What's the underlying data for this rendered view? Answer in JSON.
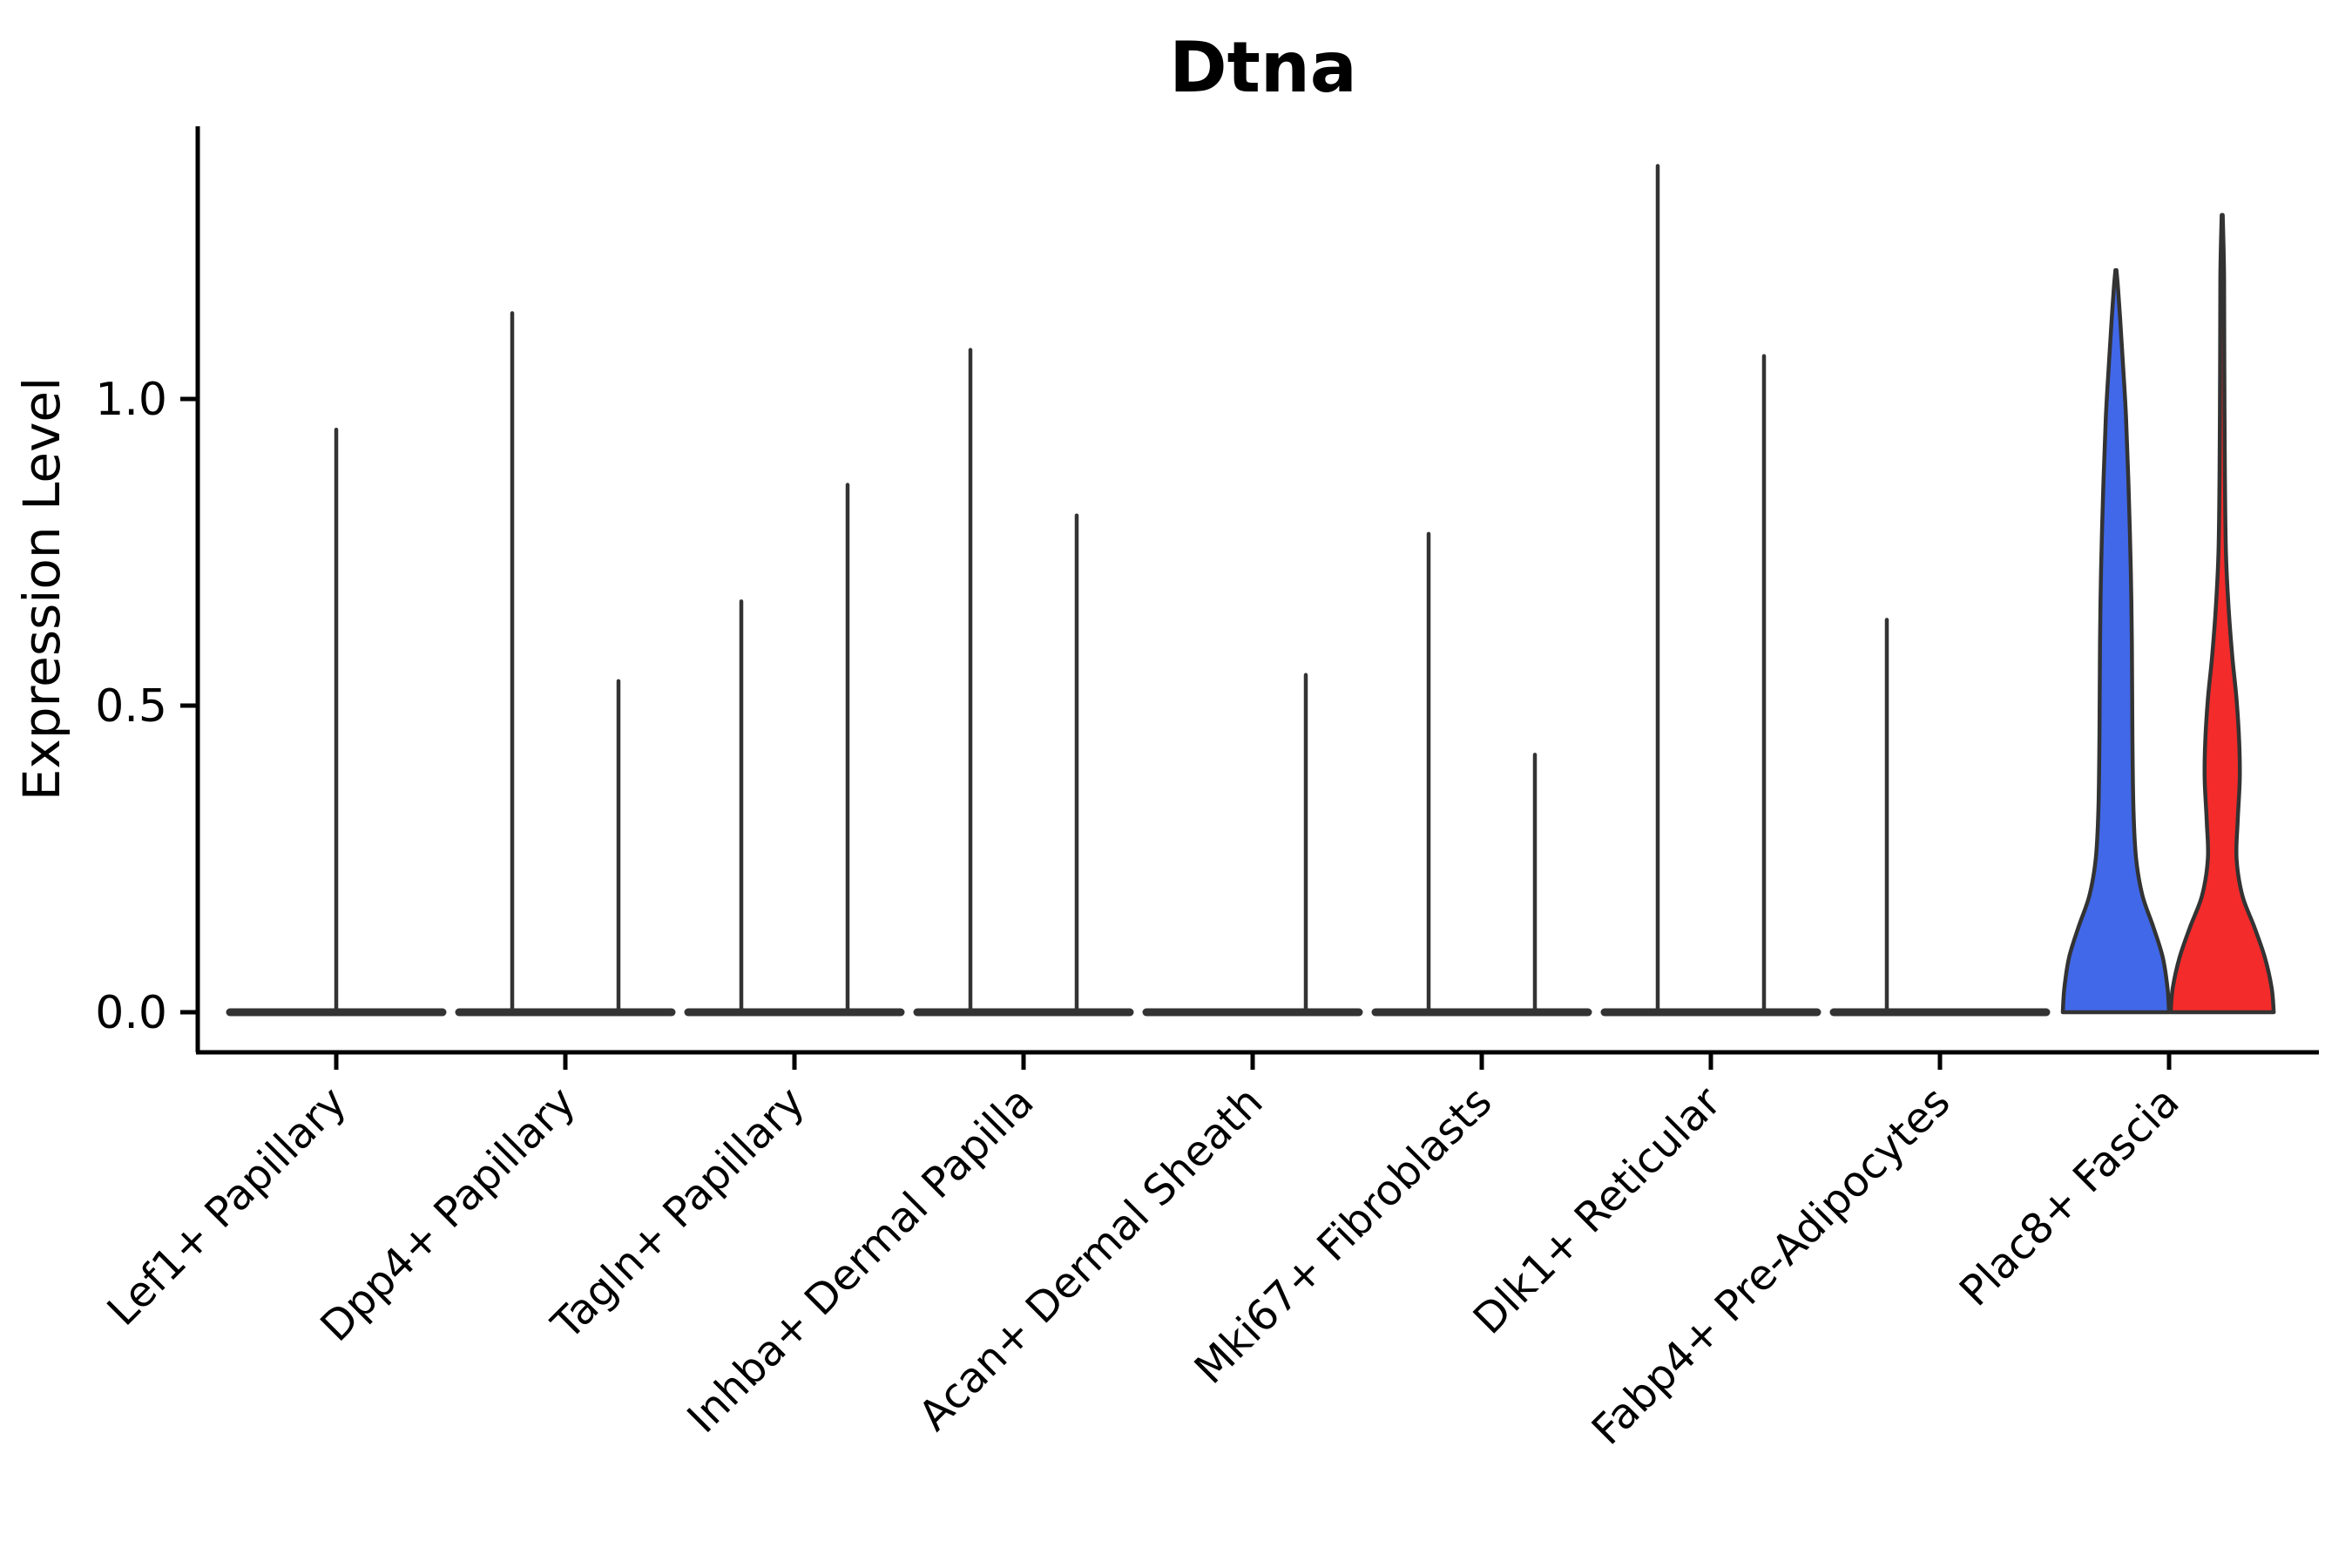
{
  "chart_data": {
    "type": "violin",
    "title": "Dtna",
    "ylabel": "Expression Level",
    "ytick_labels": [
      "0.0",
      "0.5",
      "1.0"
    ],
    "ytick_values": [
      0.0,
      0.5,
      1.0
    ],
    "ylim": [
      -0.065,
      1.445
    ],
    "grid": false,
    "legend": "none",
    "categories": [
      "Lef1+ Papillary",
      "Dpp4+ Papillary",
      "Tagln+ Papillary",
      "Inhba+ Dermal Papilla",
      "Acan+ Dermal Sheath",
      "Mki67+ Fibroblasts",
      "Dlk1+ Reticular",
      "Fabp4+ Pre-Adipocytes",
      "Plac8+ Fascia"
    ],
    "groups": [
      {
        "name": "left-group",
        "color": "#4168E8"
      },
      {
        "name": "right-group",
        "color": "#F32B2B"
      }
    ],
    "outline_color": "#333333",
    "axis_color": "#000000",
    "spikes": [
      {
        "category": 0,
        "position": "center",
        "top": 0.95
      },
      {
        "category": 1,
        "position": "left",
        "top": 1.14
      },
      {
        "category": 1,
        "position": "right",
        "top": 0.54
      },
      {
        "category": 2,
        "position": "left",
        "top": 0.67
      },
      {
        "category": 2,
        "position": "right",
        "top": 0.86
      },
      {
        "category": 3,
        "position": "left",
        "top": 1.08
      },
      {
        "category": 3,
        "position": "right",
        "top": 0.81
      },
      {
        "category": 4,
        "position": "right",
        "top": 0.55
      },
      {
        "category": 5,
        "position": "left",
        "top": 0.78
      },
      {
        "category": 5,
        "position": "right",
        "top": 0.42
      },
      {
        "category": 6,
        "position": "left",
        "top": 1.38
      },
      {
        "category": 6,
        "position": "right",
        "top": 1.07
      },
      {
        "category": 7,
        "position": "left",
        "top": 0.64
      }
    ],
    "flat_base_categories": [
      0,
      1,
      2,
      3,
      4,
      5,
      6,
      7
    ],
    "filled_violins": [
      {
        "category": 8,
        "position": "left",
        "name": "violin-blue",
        "color": "#4168E8",
        "max": 1.21,
        "profile": [
          [
            0.0,
            1.0
          ],
          [
            0.04,
            0.97
          ],
          [
            0.09,
            0.88
          ],
          [
            0.14,
            0.7
          ],
          [
            0.19,
            0.5
          ],
          [
            0.25,
            0.38
          ],
          [
            0.33,
            0.33
          ],
          [
            0.45,
            0.31
          ],
          [
            0.6,
            0.3
          ],
          [
            0.72,
            0.28
          ],
          [
            0.85,
            0.24
          ],
          [
            0.97,
            0.19
          ],
          [
            1.06,
            0.13
          ],
          [
            1.13,
            0.08
          ],
          [
            1.18,
            0.04
          ],
          [
            1.21,
            0.01
          ]
        ]
      },
      {
        "category": 8,
        "position": "right",
        "name": "violin-red",
        "color": "#F32B2B",
        "max": 1.3,
        "profile": [
          [
            0.0,
            0.97
          ],
          [
            0.04,
            0.93
          ],
          [
            0.09,
            0.8
          ],
          [
            0.14,
            0.6
          ],
          [
            0.19,
            0.38
          ],
          [
            0.25,
            0.27
          ],
          [
            0.31,
            0.29
          ],
          [
            0.38,
            0.33
          ],
          [
            0.44,
            0.32
          ],
          [
            0.51,
            0.27
          ],
          [
            0.58,
            0.19
          ],
          [
            0.66,
            0.12
          ],
          [
            0.75,
            0.07
          ],
          [
            0.88,
            0.05
          ],
          [
            1.05,
            0.04
          ],
          [
            1.2,
            0.035
          ],
          [
            1.3,
            0.01
          ]
        ]
      }
    ]
  }
}
